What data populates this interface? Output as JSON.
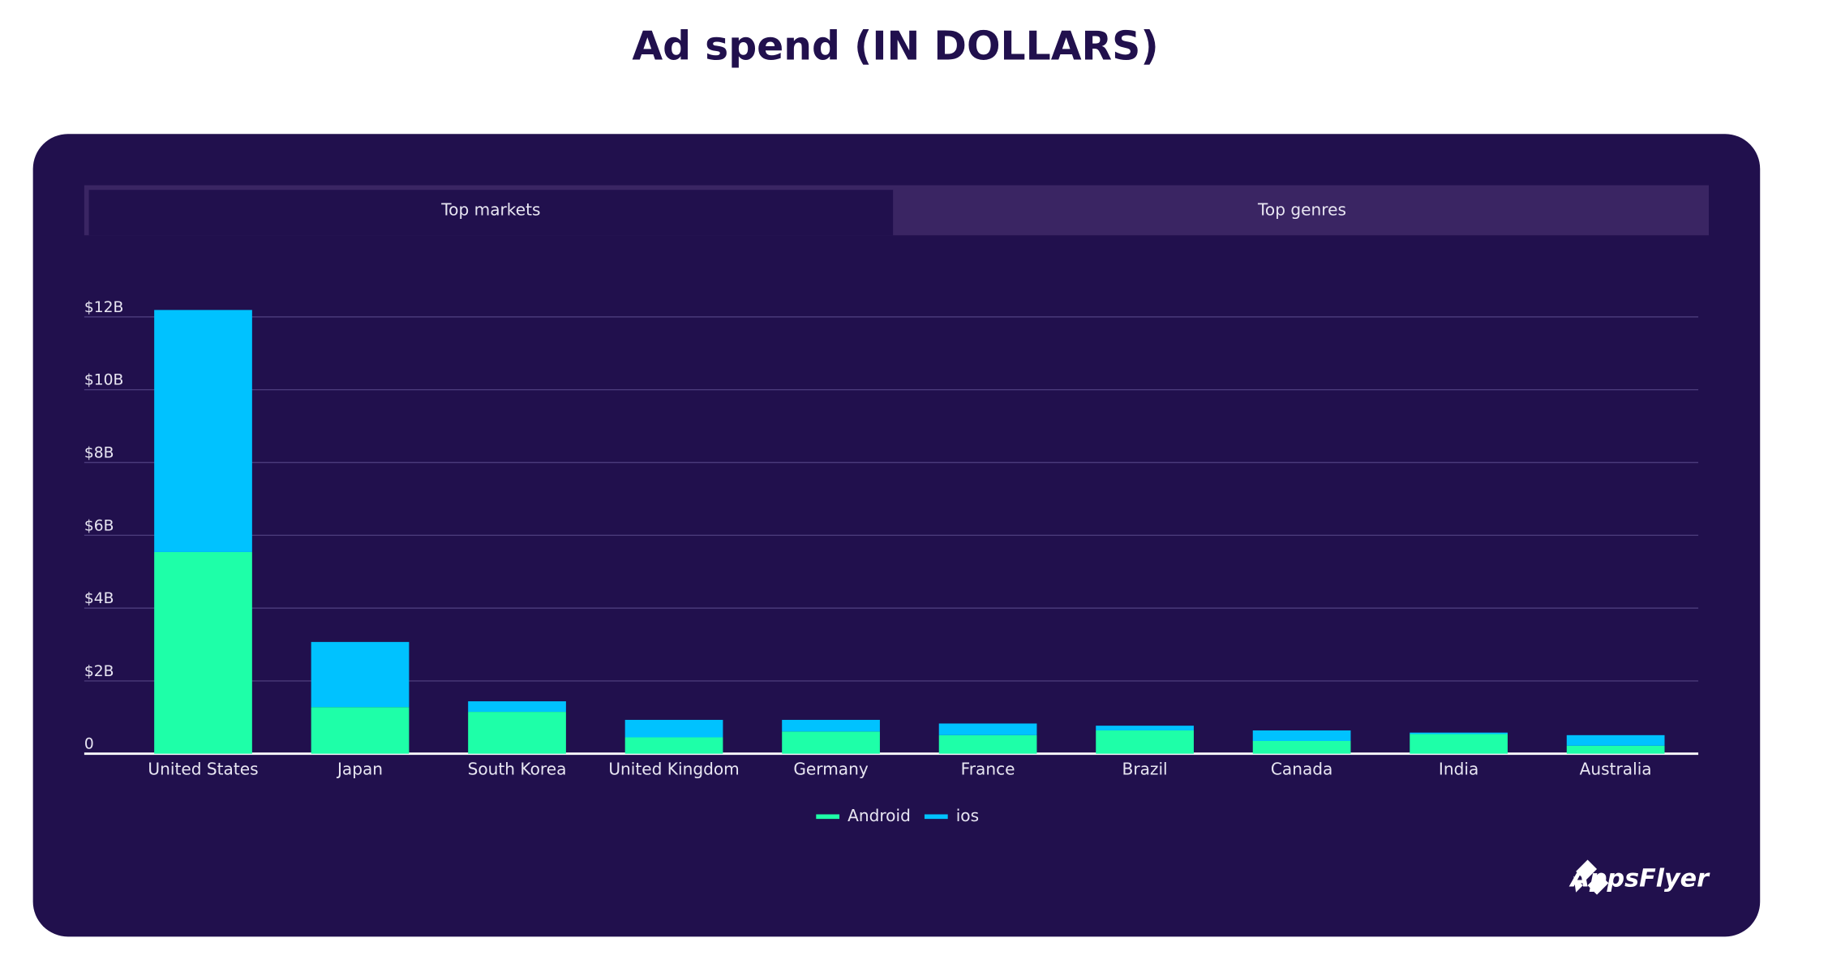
{
  "chart_data": {
    "type": "stacked-bar",
    "title": "Ad spend (IN DOLLARS)",
    "tabs": [
      "Top markets",
      "Top genres"
    ],
    "categories": [
      "United States",
      "Japan",
      "South Korea",
      "United Kingdom",
      "Germany",
      "France",
      "Brazil",
      "Canada",
      "India",
      "Australia"
    ],
    "series": [
      {
        "name": "Android",
        "color": "#1effa8",
        "values": [
          5.54,
          1.28,
          1.15,
          0.45,
          0.61,
          0.51,
          0.64,
          0.35,
          0.54,
          0.22
        ]
      },
      {
        "name": "ios",
        "color": "#00c2ff",
        "values": [
          6.65,
          1.79,
          0.29,
          0.48,
          0.32,
          0.32,
          0.13,
          0.29,
          0.04,
          0.29
        ]
      }
    ],
    "ylim": [
      0,
      12.5
    ],
    "yticks": [
      0,
      {
        "value": 2,
        "label": "$2B"
      },
      {
        "value": 4,
        "label": "$4B"
      },
      {
        "value": 6,
        "label": "$6B"
      },
      {
        "value": 8,
        "label": "$8B"
      },
      {
        "value": 10,
        "label": "$10B"
      },
      {
        "value": 12,
        "label": "$12B"
      }
    ],
    "grid": true,
    "logo": "AppsFlyer"
  }
}
